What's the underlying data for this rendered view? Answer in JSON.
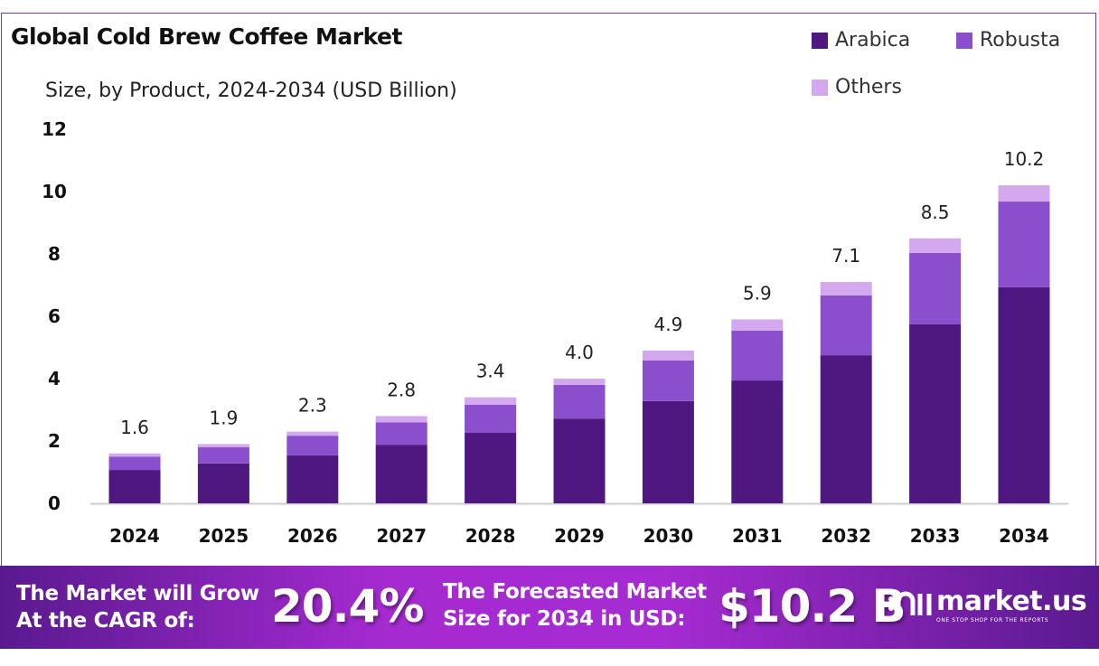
{
  "chart_data": {
    "type": "bar",
    "stacked": true,
    "title": "Global Cold Brew Coffee Market",
    "subtitle": "Size, by Product, 2024-2034 (USD Billion)",
    "categories": [
      "2024",
      "2025",
      "2026",
      "2027",
      "2028",
      "2029",
      "2030",
      "2031",
      "2032",
      "2033",
      "2034"
    ],
    "series": [
      {
        "name": "Arabica",
        "color": "#4f1780",
        "values": [
          1.07,
          1.28,
          1.54,
          1.88,
          2.26,
          2.72,
          3.28,
          3.94,
          4.75,
          5.74,
          6.93
        ]
      },
      {
        "name": "Robusta",
        "color": "#8b4fce",
        "values": [
          0.43,
          0.52,
          0.63,
          0.72,
          0.9,
          1.08,
          1.3,
          1.6,
          1.92,
          2.29,
          2.75
        ]
      },
      {
        "name": "Others",
        "color": "#d4a8ee",
        "values": [
          0.1,
          0.1,
          0.13,
          0.2,
          0.24,
          0.2,
          0.32,
          0.36,
          0.43,
          0.47,
          0.52
        ]
      }
    ],
    "totals_labels": [
      "1.6",
      "1.9",
      "2.3",
      "2.8",
      "3.4",
      "4.0",
      "4.9",
      "5.9",
      "7.1",
      "8.5",
      "10.2"
    ],
    "ylim": [
      0,
      12
    ],
    "yticks": [
      "0",
      "2",
      "4",
      "6",
      "8",
      "10",
      "12"
    ],
    "grid": false,
    "legend_position": "top-right"
  },
  "footer": {
    "cagr_text_1": "The Market will Grow",
    "cagr_text_2": "At the CAGR of:",
    "cagr_value": "20.4%",
    "forecast_text_1": "The Forecasted Market",
    "forecast_text_2": "Size for 2034 in USD:",
    "forecast_value": "$10.2 B",
    "logo_name": "market.us",
    "logo_tagline": "ONE STOP SHOP FOR THE REPORTS"
  }
}
